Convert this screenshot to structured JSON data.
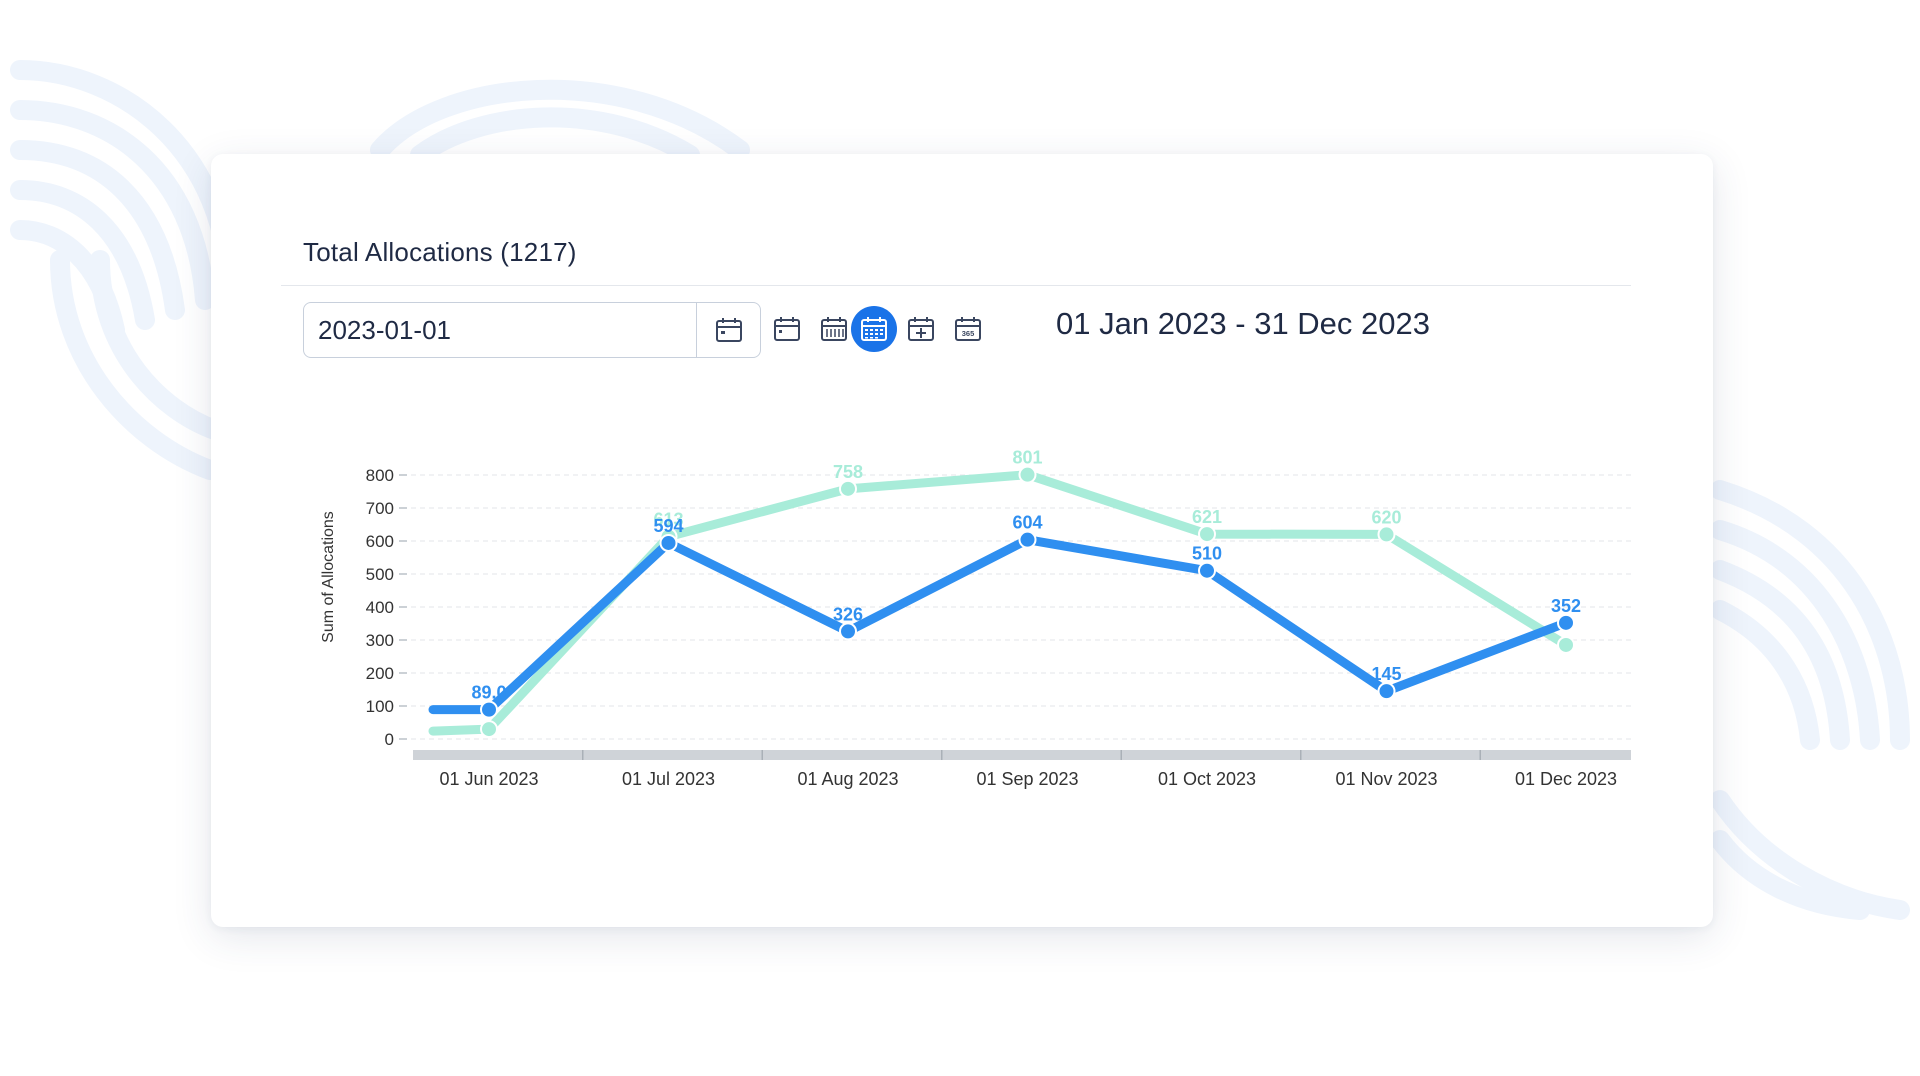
{
  "card": {
    "title": "Total Allocations (1217)"
  },
  "date_picker": {
    "value": "2023-01-01",
    "calendar_icon": "calendar-icon"
  },
  "period_buttons": [
    {
      "icon": "calendar-day-icon",
      "active": false
    },
    {
      "icon": "calendar-week-icon",
      "active": false
    },
    {
      "icon": "calendar-month-icon",
      "active": true
    },
    {
      "icon": "calendar-quarter-icon",
      "active": false
    },
    {
      "icon": "calendar-year-icon",
      "label": "365",
      "active": false
    }
  ],
  "range_label": "01 Jan 2023 - 31 Dec 2023",
  "colors": {
    "primary": "#2f8ff0",
    "secondary": "#a8ecd9",
    "active_button": "#1a73e8"
  },
  "chart_data": {
    "type": "line",
    "ylabel": "Sum of Allocations",
    "ylim": [
      0,
      800
    ],
    "yticks": [
      0,
      100,
      200,
      300,
      400,
      500,
      600,
      700,
      800
    ],
    "categories": [
      "01 Jun 2023",
      "01 Jul 2023",
      "01 Aug 2023",
      "01 Sep 2023",
      "01 Oct 2023",
      "01 Nov 2023",
      "01 Dec 2023"
    ],
    "grid": true,
    "series": [
      {
        "color": "#a8ecd9",
        "values": [
          30,
          613,
          758,
          801,
          621,
          620,
          285
        ],
        "labels": [
          "",
          "613",
          "758",
          "801",
          "621",
          "620",
          ""
        ]
      },
      {
        "color": "#2f8ff0",
        "values": [
          89,
          594,
          326,
          604,
          510,
          145,
          352
        ],
        "labels": [
          "89.0",
          "594",
          "326",
          "604",
          "510",
          "145",
          "352"
        ]
      }
    ]
  }
}
